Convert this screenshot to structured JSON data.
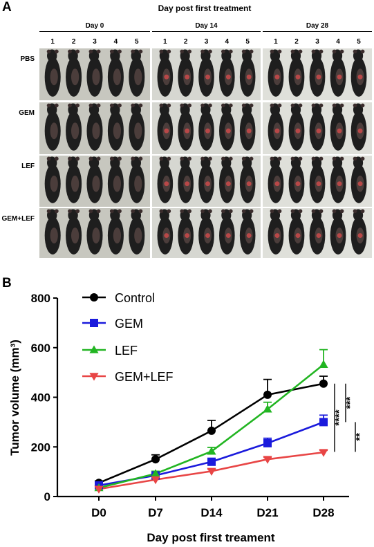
{
  "panel_a": {
    "letter": "A",
    "title": "Day post first treatment",
    "groups": [
      {
        "label": "Day 0",
        "numbers": [
          "1",
          "2",
          "3",
          "4",
          "5"
        ]
      },
      {
        "label": "Day 14",
        "numbers": [
          "1",
          "2",
          "3",
          "4",
          "5"
        ]
      },
      {
        "label": "Day 28",
        "numbers": [
          "1",
          "2",
          "3",
          "4",
          "5"
        ]
      }
    ],
    "rows": [
      "PBS",
      "GEM",
      "LEF",
      "GEM+LEF"
    ],
    "tumor_visible": [
      [
        false,
        true,
        true
      ],
      [
        false,
        true,
        true
      ],
      [
        false,
        true,
        true
      ],
      [
        false,
        true,
        true
      ]
    ],
    "colors": {
      "background_day0": "#c7c7bf",
      "background_day14": "#d6d7d1",
      "background_day28": "#dfe0da",
      "mouse": "#1e1e1e",
      "tumor": "#b84848"
    }
  },
  "panel_b": {
    "letter": "B",
    "chart_data": {
      "type": "line",
      "title": "",
      "xlabel": "Day post first treament",
      "ylabel": "Tumor volume (mm³)",
      "categories": [
        "D0",
        "D7",
        "D14",
        "D21",
        "D28"
      ],
      "ylim": [
        0,
        800
      ],
      "yticks": [
        0,
        200,
        400,
        600,
        800
      ],
      "legend_position": "top-left",
      "series": [
        {
          "name": "Control",
          "marker": "circle",
          "color": "#000000",
          "values": [
            55,
            150,
            265,
            410,
            455
          ],
          "errors": [
            8,
            18,
            42,
            62,
            30
          ]
        },
        {
          "name": "GEM",
          "marker": "square",
          "color": "#1a1adc",
          "values": [
            45,
            85,
            140,
            215,
            300
          ],
          "errors": [
            6,
            10,
            14,
            20,
            28
          ]
        },
        {
          "name": "LEF",
          "marker": "triangle-up",
          "color": "#22b522",
          "values": [
            35,
            92,
            182,
            352,
            532
          ],
          "errors": [
            5,
            10,
            16,
            28,
            60
          ]
        },
        {
          "name": "GEM+LEF",
          "marker": "triangle-down",
          "color": "#e84545",
          "values": [
            30,
            68,
            102,
            150,
            178
          ],
          "errors": [
            4,
            6,
            8,
            8,
            8
          ]
        }
      ],
      "significance": [
        {
          "label": "****",
          "from": [
            180,
            455
          ]
        },
        {
          "label": "***",
          "from": [
            300,
            455
          ]
        },
        {
          "label": "**",
          "from": [
            180,
            300
          ]
        }
      ]
    }
  }
}
